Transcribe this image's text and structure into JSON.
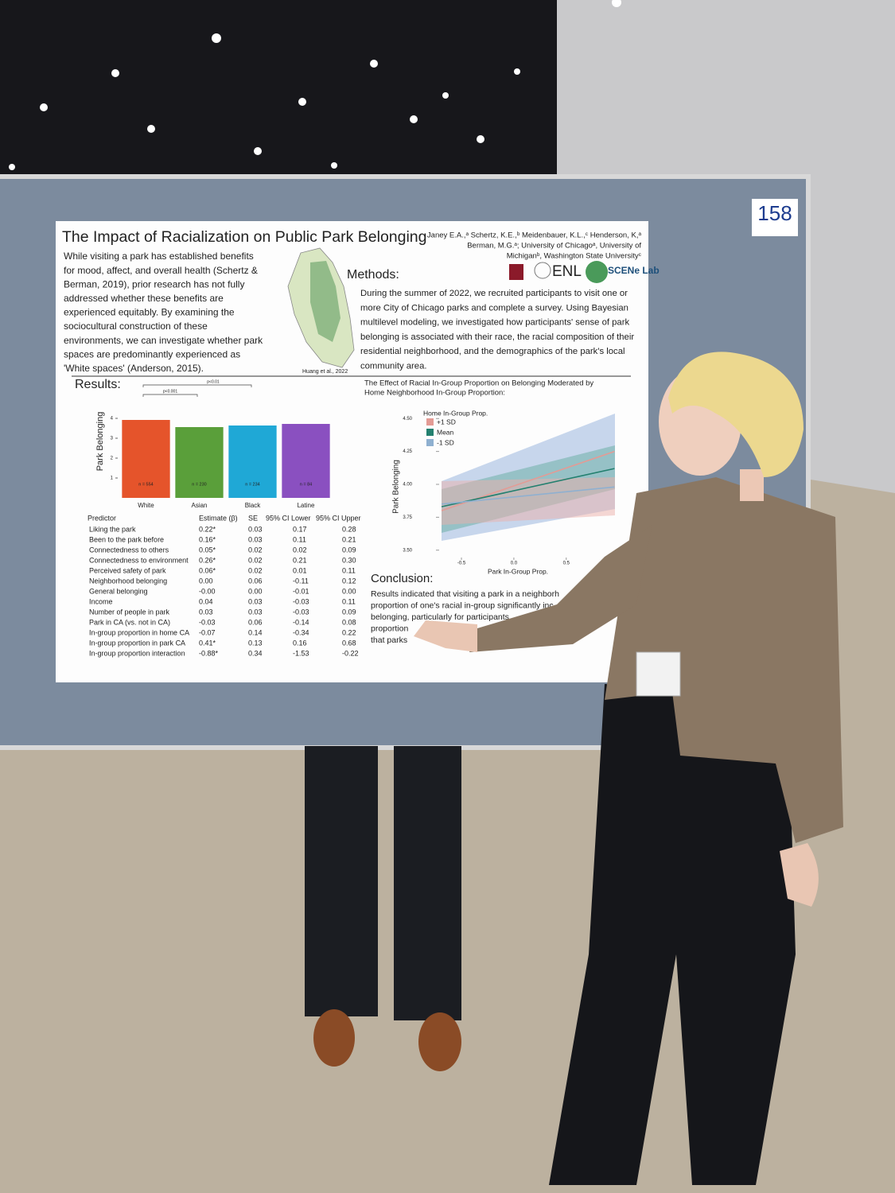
{
  "poster_number": "158",
  "poster": {
    "title": "The Impact of Racialization on Public Park Belonging",
    "authors": [
      "Janey E.A.,ᵃ Schertz, K.E.,ᵇ Meidenbauer, K.L.,ᶜ Henderson, K,ᵃ",
      "Berman, M.G.ᵃ; University of Chicagoᵃ, University of",
      "Michiganᵇ, Washington State Universityᶜ"
    ],
    "intro": [
      "While visiting a park has established benefits",
      "for mood, affect, and overall health (Schertz &",
      "Berman, 2019), prior research has not fully",
      "addressed whether these benefits are",
      "experienced equitably. By examining the",
      "sociocultural construction of these",
      "environments, we can investigate whether park",
      "spaces are predominantly experienced as",
      "'White spaces' (Anderson, 2015)."
    ],
    "map_credit": "Huang et al., 2022",
    "logos": [
      "ENL",
      "SCENe Lab"
    ],
    "methods": {
      "heading": "Methods:",
      "lines": [
        "During the summer of 2022, we recruited participants to visit one or",
        "more City of Chicago parks and complete a survey. Using Bayesian",
        "multilevel modeling, we investigated how participants' sense of park",
        "belonging is associated with their race, the racial composition of their",
        "residential neighborhood, and the demographics of the park's local",
        "community area."
      ]
    },
    "results_heading": "Results:",
    "bar_chart": {
      "type": "bar",
      "y_label": "Park Belonging",
      "categories": [
        "White",
        "Asian",
        "Black",
        "Latine"
      ],
      "values": [
        3.92,
        3.56,
        3.64,
        3.72
      ],
      "colors": [
        "#e5542b",
        "#5a9f3a",
        "#1fa8d6",
        "#8a50c0"
      ],
      "n_labels": [
        "n = 554",
        "n = 230",
        "n = 234",
        "n = 84"
      ],
      "significance": [
        "p<0.001",
        "p<0.01"
      ],
      "ylim": [
        0,
        4.2
      ],
      "yticks": [
        1,
        2,
        3,
        4
      ]
    },
    "line_chart": {
      "type": "line",
      "title": [
        "The Effect of Racial In-Group Proportion on Belonging Moderated by",
        "Home Neighborhood In-Group Proportion:"
      ],
      "legend_title": "Home In-Group Prop.",
      "x_label": "Park In-Group Prop.",
      "y_label": "Park Belonging",
      "x": [
        -0.69,
        0.96
      ],
      "series": [
        {
          "name": "+1 SD",
          "color": "#e39b95",
          "values": [
            3.8,
            4.25
          ]
        },
        {
          "name": "Mean",
          "color": "#23806f",
          "values": [
            3.83,
            4.12
          ]
        },
        {
          "name": "-1 SD",
          "color": "#8fb0d0",
          "values": [
            3.85,
            3.98
          ]
        }
      ],
      "xlim": [
        -0.69,
        0.98
      ],
      "ylim": [
        3.45,
        4.55
      ],
      "xticks": [
        -0.5,
        {
          "value": 0,
          "label": "0.0"
        },
        0.5
      ],
      "yticks": [
        {
          "value": 3.5,
          "label": "3.50"
        },
        3.75,
        {
          "value": 4,
          "label": "4.00"
        },
        4.25,
        {
          "value": 4.5,
          "label": "4.50"
        }
      ]
    },
    "table": {
      "header": [
        "Predictor",
        "Estimate (β)",
        "SE",
        "95% CI Lower",
        "95% CI Upper"
      ],
      "rows": [
        [
          "Liking the park",
          "0.22*",
          "0.03",
          "0.17",
          "0.28"
        ],
        [
          "Been to the park before",
          "0.16*",
          "0.03",
          "0.11",
          "0.21"
        ],
        [
          "Connectedness to others",
          "0.05*",
          "0.02",
          "0.02",
          "0.09"
        ],
        [
          "Connectedness to environment",
          "0.26*",
          "0.02",
          "0.21",
          "0.30"
        ],
        [
          "Perceived safety of park",
          "0.06*",
          "0.02",
          "0.01",
          "0.11"
        ],
        [
          "Neighborhood belonging",
          "0.00",
          "0.06",
          "-0.11",
          "0.12"
        ],
        [
          "General belonging",
          "-0.00",
          "0.00",
          "-0.01",
          "0.00"
        ],
        [
          "Income",
          "0.04",
          "0.03",
          "-0.03",
          "0.11"
        ],
        [
          "Number of people in park",
          "0.03",
          "0.03",
          "-0.03",
          "0.09"
        ],
        [
          "Park in CA (vs. not in CA)",
          "-0.03",
          "0.06",
          "-0.14",
          "0.08"
        ],
        [
          "In-group proportion in home CA",
          "-0.07",
          "0.14",
          "-0.34",
          "0.22"
        ],
        [
          "In-group proportion in park CA",
          "0.41*",
          "0.13",
          "0.16",
          "0.68"
        ],
        [
          "In-group proportion interaction",
          "-0.88*",
          "0.34",
          "-1.53",
          "-0.22"
        ]
      ]
    },
    "conclusion": {
      "heading": "Conclusion:",
      "lines": [
        "Results indicated that visiting a park in a neighborh",
        "proportion of one's racial in-group significantly inc",
        "belonging, particularly for participants",
        "proportion",
        "that parks"
      ]
    }
  }
}
